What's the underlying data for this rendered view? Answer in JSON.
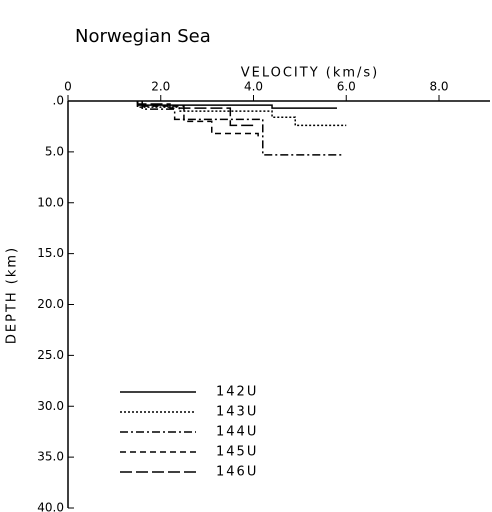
{
  "chart_data": {
    "type": "line",
    "title": "Norwegian Sea",
    "x_label": "VELOCITY (km/s)",
    "y_label": "DEPTH (km)",
    "xlim": [
      0,
      9.1
    ],
    "ylim": [
      0,
      40
    ],
    "y_inverted": true,
    "xticks": [
      0,
      {
        "value": 2,
        "label": "2.0"
      },
      {
        "value": 4,
        "label": "4.0"
      },
      {
        "value": 6,
        "label": "6.0"
      },
      {
        "value": 8,
        "label": "8.0"
      }
    ],
    "yticks": [
      {
        "value": 0,
        "label": ".0"
      },
      {
        "value": 5,
        "label": "5.0"
      },
      {
        "value": 10,
        "label": "10.0"
      },
      {
        "value": 15,
        "label": "15.0"
      },
      {
        "value": 20,
        "label": "20.0"
      },
      {
        "value": 25,
        "label": "25.0"
      },
      {
        "value": 30,
        "label": "30.0"
      },
      {
        "value": 35,
        "label": "35.0"
      },
      {
        "value": 40,
        "label": "40.0"
      }
    ],
    "series": [
      {
        "name": "142U",
        "color": "#000000",
        "dash": "none",
        "x": [
          1.5,
          1.5,
          4.4,
          4.4,
          5.8
        ],
        "y": [
          0,
          0.4,
          0.4,
          0.7,
          0.7
        ]
      },
      {
        "name": "143U",
        "color": "#000000",
        "dash": "2 2",
        "x": [
          1.5,
          1.5,
          2.4,
          2.4,
          4.4,
          4.4,
          4.9,
          4.9,
          6.0
        ],
        "y": [
          0,
          0.6,
          0.6,
          1.0,
          1.0,
          1.6,
          1.6,
          2.4,
          2.4
        ]
      },
      {
        "name": "144U",
        "color": "#000000",
        "dash": "8 3 2 3",
        "x": [
          1.6,
          1.6,
          2.3,
          2.3,
          4.2,
          4.2,
          5.9
        ],
        "y": [
          0,
          0.8,
          0.8,
          1.8,
          1.8,
          5.3,
          5.3
        ]
      },
      {
        "name": "145U",
        "color": "#000000",
        "dash": "6 4",
        "x": [
          1.5,
          1.5,
          2.5,
          2.5,
          3.1,
          3.1,
          4.1,
          4.1
        ],
        "y": [
          0,
          0.5,
          0.5,
          2.0,
          2.0,
          3.2,
          3.2,
          3.5
        ]
      },
      {
        "name": "146U",
        "color": "#000000",
        "dash": "12 4",
        "x": [
          1.5,
          1.5,
          2.2,
          2.2,
          3.5,
          3.5,
          4.0
        ],
        "y": [
          0,
          0.3,
          0.3,
          0.7,
          0.7,
          2.4,
          2.4
        ]
      }
    ]
  }
}
